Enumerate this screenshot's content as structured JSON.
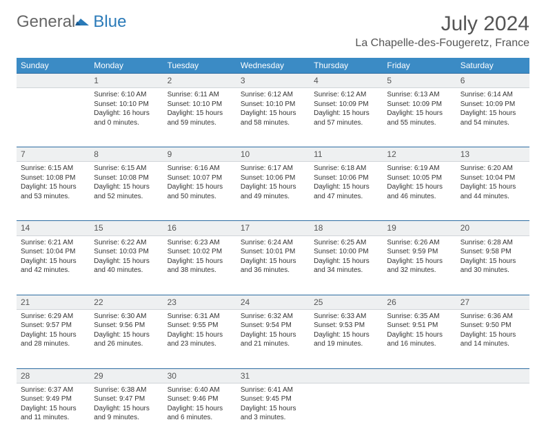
{
  "brand": {
    "general": "General",
    "blue": "Blue"
  },
  "title": "July 2024",
  "location": "La Chapelle-des-Fougeretz, France",
  "colors": {
    "header_bg": "#3b8bc5",
    "header_text": "#ffffff",
    "daynum_bg": "#eef0f1",
    "border": "#2a6aa0",
    "body_text": "#333333",
    "title_text": "#555555",
    "brand_blue": "#2a7ab8",
    "brand_gray": "#666666"
  },
  "weekdays": [
    "Sunday",
    "Monday",
    "Tuesday",
    "Wednesday",
    "Thursday",
    "Friday",
    "Saturday"
  ],
  "weeks": [
    [
      null,
      {
        "n": "1",
        "sr": "Sunrise: 6:10 AM",
        "ss": "Sunset: 10:10 PM",
        "d1": "Daylight: 16 hours",
        "d2": "and 0 minutes."
      },
      {
        "n": "2",
        "sr": "Sunrise: 6:11 AM",
        "ss": "Sunset: 10:10 PM",
        "d1": "Daylight: 15 hours",
        "d2": "and 59 minutes."
      },
      {
        "n": "3",
        "sr": "Sunrise: 6:12 AM",
        "ss": "Sunset: 10:10 PM",
        "d1": "Daylight: 15 hours",
        "d2": "and 58 minutes."
      },
      {
        "n": "4",
        "sr": "Sunrise: 6:12 AM",
        "ss": "Sunset: 10:09 PM",
        "d1": "Daylight: 15 hours",
        "d2": "and 57 minutes."
      },
      {
        "n": "5",
        "sr": "Sunrise: 6:13 AM",
        "ss": "Sunset: 10:09 PM",
        "d1": "Daylight: 15 hours",
        "d2": "and 55 minutes."
      },
      {
        "n": "6",
        "sr": "Sunrise: 6:14 AM",
        "ss": "Sunset: 10:09 PM",
        "d1": "Daylight: 15 hours",
        "d2": "and 54 minutes."
      }
    ],
    [
      {
        "n": "7",
        "sr": "Sunrise: 6:15 AM",
        "ss": "Sunset: 10:08 PM",
        "d1": "Daylight: 15 hours",
        "d2": "and 53 minutes."
      },
      {
        "n": "8",
        "sr": "Sunrise: 6:15 AM",
        "ss": "Sunset: 10:08 PM",
        "d1": "Daylight: 15 hours",
        "d2": "and 52 minutes."
      },
      {
        "n": "9",
        "sr": "Sunrise: 6:16 AM",
        "ss": "Sunset: 10:07 PM",
        "d1": "Daylight: 15 hours",
        "d2": "and 50 minutes."
      },
      {
        "n": "10",
        "sr": "Sunrise: 6:17 AM",
        "ss": "Sunset: 10:06 PM",
        "d1": "Daylight: 15 hours",
        "d2": "and 49 minutes."
      },
      {
        "n": "11",
        "sr": "Sunrise: 6:18 AM",
        "ss": "Sunset: 10:06 PM",
        "d1": "Daylight: 15 hours",
        "d2": "and 47 minutes."
      },
      {
        "n": "12",
        "sr": "Sunrise: 6:19 AM",
        "ss": "Sunset: 10:05 PM",
        "d1": "Daylight: 15 hours",
        "d2": "and 46 minutes."
      },
      {
        "n": "13",
        "sr": "Sunrise: 6:20 AM",
        "ss": "Sunset: 10:04 PM",
        "d1": "Daylight: 15 hours",
        "d2": "and 44 minutes."
      }
    ],
    [
      {
        "n": "14",
        "sr": "Sunrise: 6:21 AM",
        "ss": "Sunset: 10:04 PM",
        "d1": "Daylight: 15 hours",
        "d2": "and 42 minutes."
      },
      {
        "n": "15",
        "sr": "Sunrise: 6:22 AM",
        "ss": "Sunset: 10:03 PM",
        "d1": "Daylight: 15 hours",
        "d2": "and 40 minutes."
      },
      {
        "n": "16",
        "sr": "Sunrise: 6:23 AM",
        "ss": "Sunset: 10:02 PM",
        "d1": "Daylight: 15 hours",
        "d2": "and 38 minutes."
      },
      {
        "n": "17",
        "sr": "Sunrise: 6:24 AM",
        "ss": "Sunset: 10:01 PM",
        "d1": "Daylight: 15 hours",
        "d2": "and 36 minutes."
      },
      {
        "n": "18",
        "sr": "Sunrise: 6:25 AM",
        "ss": "Sunset: 10:00 PM",
        "d1": "Daylight: 15 hours",
        "d2": "and 34 minutes."
      },
      {
        "n": "19",
        "sr": "Sunrise: 6:26 AM",
        "ss": "Sunset: 9:59 PM",
        "d1": "Daylight: 15 hours",
        "d2": "and 32 minutes."
      },
      {
        "n": "20",
        "sr": "Sunrise: 6:28 AM",
        "ss": "Sunset: 9:58 PM",
        "d1": "Daylight: 15 hours",
        "d2": "and 30 minutes."
      }
    ],
    [
      {
        "n": "21",
        "sr": "Sunrise: 6:29 AM",
        "ss": "Sunset: 9:57 PM",
        "d1": "Daylight: 15 hours",
        "d2": "and 28 minutes."
      },
      {
        "n": "22",
        "sr": "Sunrise: 6:30 AM",
        "ss": "Sunset: 9:56 PM",
        "d1": "Daylight: 15 hours",
        "d2": "and 26 minutes."
      },
      {
        "n": "23",
        "sr": "Sunrise: 6:31 AM",
        "ss": "Sunset: 9:55 PM",
        "d1": "Daylight: 15 hours",
        "d2": "and 23 minutes."
      },
      {
        "n": "24",
        "sr": "Sunrise: 6:32 AM",
        "ss": "Sunset: 9:54 PM",
        "d1": "Daylight: 15 hours",
        "d2": "and 21 minutes."
      },
      {
        "n": "25",
        "sr": "Sunrise: 6:33 AM",
        "ss": "Sunset: 9:53 PM",
        "d1": "Daylight: 15 hours",
        "d2": "and 19 minutes."
      },
      {
        "n": "26",
        "sr": "Sunrise: 6:35 AM",
        "ss": "Sunset: 9:51 PM",
        "d1": "Daylight: 15 hours",
        "d2": "and 16 minutes."
      },
      {
        "n": "27",
        "sr": "Sunrise: 6:36 AM",
        "ss": "Sunset: 9:50 PM",
        "d1": "Daylight: 15 hours",
        "d2": "and 14 minutes."
      }
    ],
    [
      {
        "n": "28",
        "sr": "Sunrise: 6:37 AM",
        "ss": "Sunset: 9:49 PM",
        "d1": "Daylight: 15 hours",
        "d2": "and 11 minutes."
      },
      {
        "n": "29",
        "sr": "Sunrise: 6:38 AM",
        "ss": "Sunset: 9:47 PM",
        "d1": "Daylight: 15 hours",
        "d2": "and 9 minutes."
      },
      {
        "n": "30",
        "sr": "Sunrise: 6:40 AM",
        "ss": "Sunset: 9:46 PM",
        "d1": "Daylight: 15 hours",
        "d2": "and 6 minutes."
      },
      {
        "n": "31",
        "sr": "Sunrise: 6:41 AM",
        "ss": "Sunset: 9:45 PM",
        "d1": "Daylight: 15 hours",
        "d2": "and 3 minutes."
      },
      null,
      null,
      null
    ]
  ]
}
